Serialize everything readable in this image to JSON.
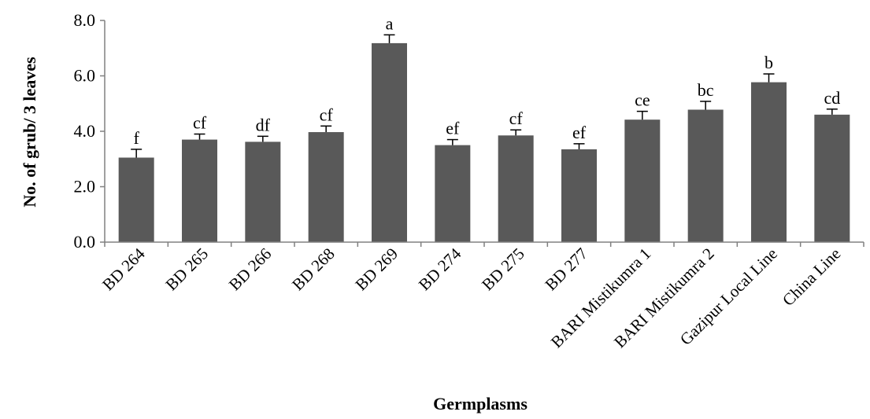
{
  "chart_data": {
    "type": "bar",
    "title": "",
    "xlabel": "Germplasms",
    "ylabel": "No. of grub/ 3 leaves",
    "ylim": [
      0,
      8
    ],
    "yticks": [
      "0.0",
      "2.0",
      "4.0",
      "6.0",
      "8.0"
    ],
    "grid": false,
    "legend": "none",
    "bar_color": "#595959",
    "categories": [
      "BD 264",
      "BD 265",
      "BD 266",
      "BD 268",
      "BD 269",
      "BD 274",
      "BD 275",
      "BD 277",
      "BARI Mistikumra 1",
      "BARI Mistikumra 2",
      "Gazipur Local Line",
      "China Line"
    ],
    "values": [
      3.05,
      3.7,
      3.62,
      3.97,
      7.18,
      3.5,
      3.85,
      3.35,
      4.42,
      4.78,
      5.77,
      4.6
    ],
    "errors": [
      0.3,
      0.2,
      0.2,
      0.22,
      0.3,
      0.2,
      0.2,
      0.2,
      0.3,
      0.3,
      0.3,
      0.2
    ],
    "significance": [
      "f",
      "cf",
      "df",
      "cf",
      "a",
      "ef",
      "cf",
      "ef",
      "ce",
      "bc",
      "b",
      "cd"
    ]
  }
}
